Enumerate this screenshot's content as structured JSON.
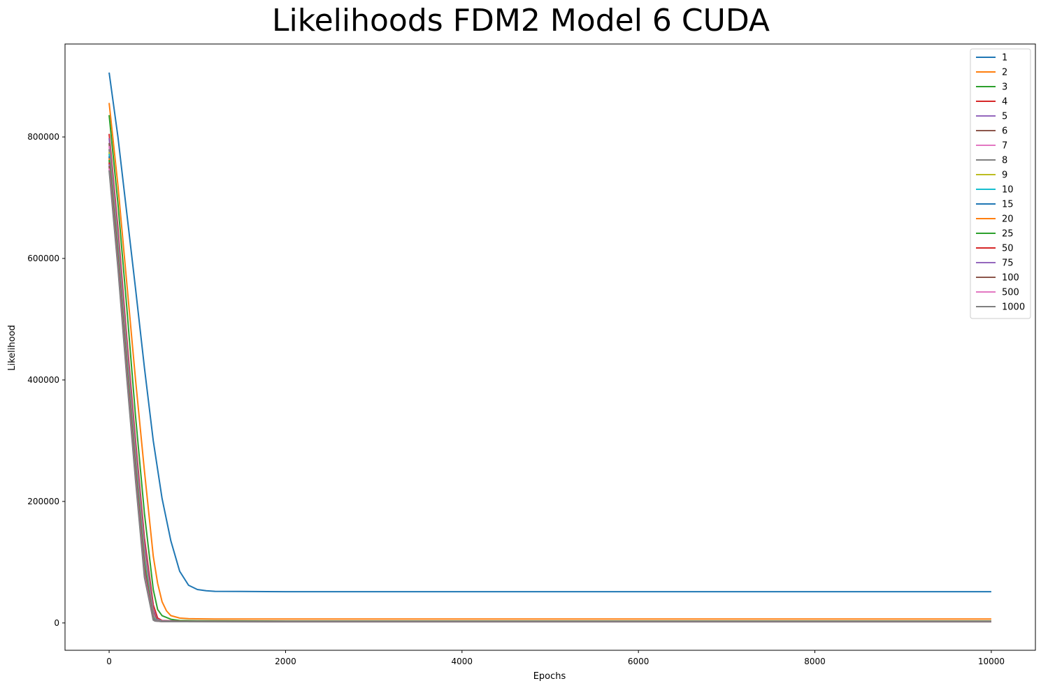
{
  "chart_data": {
    "type": "line",
    "title": "Likelihoods FDM2 Model 6 CUDA",
    "xlabel": "Epochs",
    "ylabel": "Likelihood",
    "xlim": [
      -500,
      10500
    ],
    "ylim": [
      -45000,
      953000
    ],
    "xticks": [
      0,
      2000,
      4000,
      6000,
      8000,
      10000
    ],
    "yticks": [
      0,
      200000,
      400000,
      600000,
      800000
    ],
    "grid": false,
    "legend_position": "top-right",
    "series": [
      {
        "name": "1",
        "color": "#1f77b4",
        "x": [
          0,
          100,
          200,
          300,
          400,
          500,
          600,
          700,
          800,
          900,
          1000,
          1100,
          1200,
          1500,
          2000,
          3000,
          4000,
          5000,
          6000,
          7000,
          8000,
          9000,
          10000
        ],
        "y": [
          906000,
          800000,
          675000,
          550000,
          420000,
          300000,
          205000,
          135000,
          85000,
          62000,
          55000,
          53000,
          52000,
          51800,
          51500,
          51500,
          51500,
          51500,
          51500,
          51500,
          51500,
          51500,
          51500
        ]
      },
      {
        "name": "2",
        "color": "#ff7f0e",
        "x": [
          0,
          100,
          200,
          300,
          400,
          500,
          550,
          600,
          650,
          700,
          800,
          900,
          1000,
          1200,
          1500,
          2000,
          4000,
          6000,
          8000,
          10000
        ],
        "y": [
          856000,
          720000,
          560000,
          400000,
          250000,
          110000,
          65000,
          35000,
          20000,
          12000,
          8000,
          7000,
          6700,
          6500,
          6500,
          6500,
          6500,
          6500,
          6500,
          6500
        ]
      },
      {
        "name": "3",
        "color": "#2ca02c",
        "x": [
          0,
          100,
          200,
          300,
          400,
          500,
          550,
          600,
          700,
          800,
          1000,
          2000,
          10000
        ],
        "y": [
          836000,
          690000,
          520000,
          340000,
          180000,
          55000,
          22000,
          12000,
          6000,
          4000,
          3500,
          3200,
          3200
        ]
      },
      {
        "name": "4",
        "color": "#d62728",
        "x": [
          0,
          100,
          200,
          300,
          400,
          500,
          550,
          600,
          800,
          2000,
          10000
        ],
        "y": [
          805000,
          650000,
          470000,
          300000,
          140000,
          30000,
          8000,
          4000,
          3000,
          2800,
          2800
        ]
      },
      {
        "name": "5",
        "color": "#9467bd",
        "x": [
          0,
          100,
          200,
          300,
          400,
          500,
          540,
          600,
          800,
          2000,
          10000
        ],
        "y": [
          798000,
          640000,
          460000,
          290000,
          130000,
          22000,
          6000,
          3500,
          2800,
          2600,
          2600
        ]
      },
      {
        "name": "6",
        "color": "#8c564b",
        "x": [
          0,
          100,
          200,
          300,
          400,
          500,
          540,
          600,
          800,
          2000,
          10000
        ],
        "y": [
          790000,
          632000,
          452000,
          282000,
          122000,
          18000,
          5000,
          3200,
          2600,
          2500,
          2500
        ]
      },
      {
        "name": "7",
        "color": "#e377c2",
        "x": [
          0,
          100,
          200,
          300,
          400,
          500,
          530,
          600,
          800,
          2000,
          10000
        ],
        "y": [
          785000,
          626000,
          446000,
          276000,
          116000,
          15000,
          5000,
          3000,
          2500,
          2400,
          2400
        ]
      },
      {
        "name": "8",
        "color": "#7f7f7f",
        "x": [
          0,
          100,
          200,
          300,
          400,
          500,
          530,
          600,
          800,
          2000,
          10000
        ],
        "y": [
          780000,
          620000,
          440000,
          270000,
          110000,
          12000,
          4500,
          2900,
          2500,
          2400,
          2400
        ]
      },
      {
        "name": "9",
        "color": "#bcbd22",
        "x": [
          0,
          100,
          200,
          300,
          400,
          500,
          530,
          600,
          800,
          2000,
          10000
        ],
        "y": [
          775000,
          615000,
          435000,
          265000,
          106000,
          10000,
          4200,
          2800,
          2400,
          2300,
          2300
        ]
      },
      {
        "name": "10",
        "color": "#17becf",
        "x": [
          0,
          100,
          200,
          300,
          400,
          500,
          530,
          600,
          800,
          2000,
          10000
        ],
        "y": [
          772000,
          612000,
          432000,
          262000,
          103000,
          9000,
          4000,
          2700,
          2400,
          2300,
          2300
        ]
      },
      {
        "name": "15",
        "color": "#1f77b4",
        "x": [
          0,
          100,
          200,
          300,
          400,
          500,
          520,
          600,
          800,
          2000,
          10000
        ],
        "y": [
          768000,
          607000,
          427000,
          257000,
          98000,
          8000,
          4000,
          2600,
          2300,
          2200,
          2200
        ]
      },
      {
        "name": "20",
        "color": "#ff7f0e",
        "x": [
          0,
          100,
          200,
          300,
          400,
          500,
          520,
          600,
          800,
          2000,
          10000
        ],
        "y": [
          765000,
          604000,
          424000,
          254000,
          95000,
          7000,
          3800,
          2500,
          2300,
          2200,
          2200
        ]
      },
      {
        "name": "25",
        "color": "#2ca02c",
        "x": [
          0,
          100,
          200,
          300,
          400,
          500,
          520,
          600,
          800,
          2000,
          10000
        ],
        "y": [
          762000,
          601000,
          421000,
          251000,
          92000,
          6500,
          3700,
          2500,
          2200,
          2100,
          2100
        ]
      },
      {
        "name": "50",
        "color": "#d62728",
        "x": [
          0,
          100,
          200,
          300,
          400,
          500,
          520,
          600,
          800,
          2000,
          10000
        ],
        "y": [
          758000,
          597000,
          417000,
          247000,
          88000,
          6000,
          3600,
          2400,
          2200,
          2100,
          2100
        ]
      },
      {
        "name": "75",
        "color": "#9467bd",
        "x": [
          0,
          100,
          200,
          300,
          400,
          500,
          520,
          600,
          800,
          2000,
          10000
        ],
        "y": [
          755000,
          594000,
          414000,
          244000,
          85000,
          5500,
          3500,
          2400,
          2200,
          2100,
          2100
        ]
      },
      {
        "name": "100",
        "color": "#8c564b",
        "x": [
          0,
          100,
          200,
          300,
          400,
          500,
          520,
          600,
          800,
          2000,
          10000
        ],
        "y": [
          752000,
          591000,
          411000,
          241000,
          82000,
          5200,
          3400,
          2300,
          2100,
          2000,
          2000
        ]
      },
      {
        "name": "500",
        "color": "#e377c2",
        "x": [
          0,
          100,
          200,
          300,
          400,
          500,
          520,
          600,
          800,
          2000,
          10000
        ],
        "y": [
          748000,
          587000,
          407000,
          237000,
          78000,
          5000,
          3300,
          2300,
          2100,
          2000,
          2000
        ]
      },
      {
        "name": "1000",
        "color": "#7f7f7f",
        "x": [
          0,
          100,
          200,
          300,
          400,
          500,
          520,
          600,
          800,
          2000,
          10000
        ],
        "y": [
          745000,
          584000,
          404000,
          234000,
          75000,
          4800,
          3200,
          2200,
          2100,
          2000,
          2000
        ]
      }
    ]
  }
}
